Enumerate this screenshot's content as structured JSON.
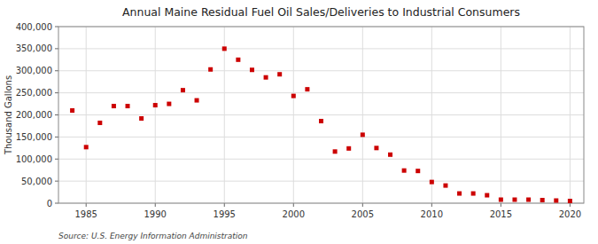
{
  "chart_data": {
    "type": "scatter",
    "title": "Annual Maine Residual Fuel Oil Sales/Deliveries to Industrial Consumers",
    "ylabel": "Thousand Gallons",
    "source": "Source: U.S. Energy Information Administration",
    "color": "#cc0000",
    "marker": "square",
    "grid": true,
    "x": [
      1984,
      1985,
      1986,
      1987,
      1988,
      1989,
      1990,
      1991,
      1992,
      1993,
      1994,
      1995,
      1996,
      1997,
      1998,
      1999,
      2000,
      2001,
      2002,
      2003,
      2004,
      2005,
      2006,
      2007,
      2008,
      2009,
      2010,
      2011,
      2012,
      2013,
      2014,
      2015,
      2016,
      2017,
      2018,
      2019,
      2020
    ],
    "values": [
      210000,
      127000,
      182000,
      220000,
      220000,
      192000,
      222000,
      225000,
      256000,
      233000,
      303000,
      350000,
      325000,
      302000,
      285000,
      292000,
      243000,
      258000,
      186000,
      117000,
      124000,
      155000,
      125000,
      110000,
      74000,
      73000,
      48000,
      40000,
      22000,
      22000,
      18000,
      8000,
      8000,
      8000,
      7000,
      6000,
      5000
    ],
    "xlim": [
      1983,
      2021
    ],
    "ylim": [
      0,
      400000
    ],
    "xticks": [
      1985,
      1990,
      1995,
      2000,
      2005,
      2010,
      2015,
      2020
    ],
    "yticks": [
      0,
      {
        "value": 50000,
        "label": "50,000"
      },
      {
        "value": 100000,
        "label": "100,000"
      },
      {
        "value": 150000,
        "label": "150,000"
      },
      {
        "value": 200000,
        "label": "200,000"
      },
      {
        "value": 250000,
        "label": "250,000"
      },
      {
        "value": 300000,
        "label": "300,000"
      },
      {
        "value": 350000,
        "label": "350,000"
      },
      {
        "value": 400000,
        "label": "400,000"
      }
    ]
  }
}
